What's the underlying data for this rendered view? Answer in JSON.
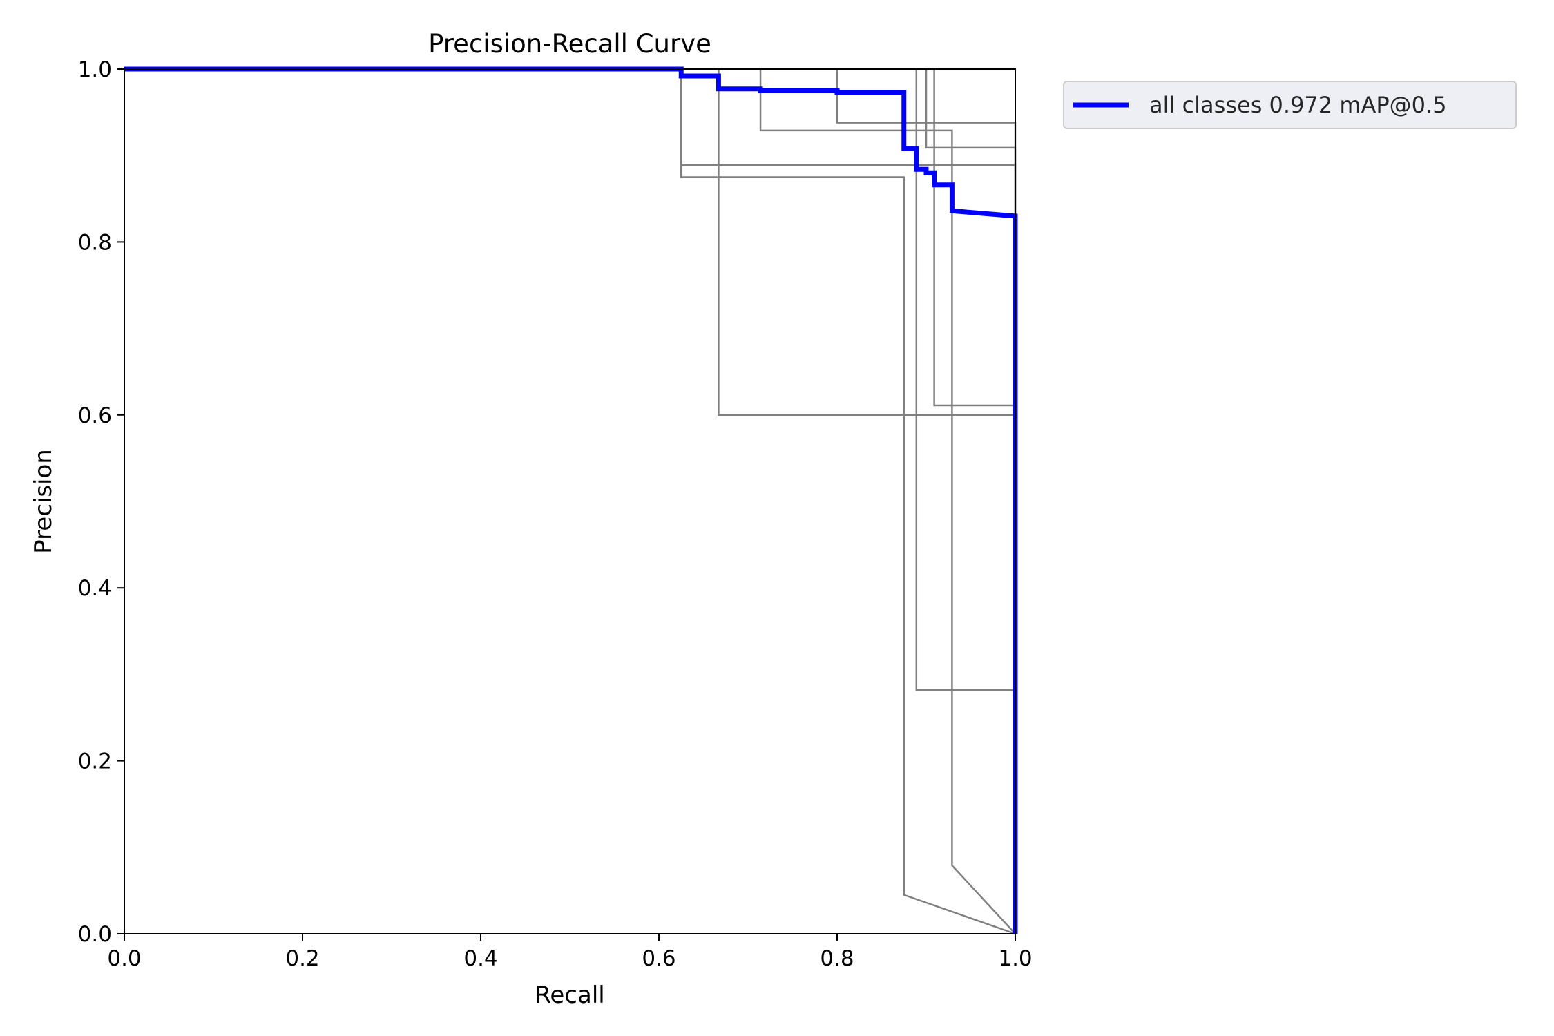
{
  "chart_data": {
    "type": "line",
    "title": "Precision-Recall Curve",
    "xlabel": "Recall",
    "ylabel": "Precision",
    "xlim": [
      0.0,
      1.0
    ],
    "ylim": [
      0.0,
      1.0
    ],
    "xticks": [
      "0.0",
      "0.2",
      "0.4",
      "0.6",
      "0.8",
      "1.0"
    ],
    "yticks": [
      "0.0",
      "0.2",
      "0.4",
      "0.6",
      "0.8",
      "1.0"
    ],
    "grid": false,
    "legend_position": "outside-top-right",
    "series": [
      {
        "name": "all classes 0.972 mAP@0.5",
        "color": "#0000ff",
        "emphasis": true,
        "points": [
          [
            0.0,
            1.0
          ],
          [
            0.625,
            1.0
          ],
          [
            0.625,
            0.992
          ],
          [
            0.667,
            0.992
          ],
          [
            0.667,
            0.977
          ],
          [
            0.714,
            0.977
          ],
          [
            0.714,
            0.975
          ],
          [
            0.8,
            0.975
          ],
          [
            0.8,
            0.973
          ],
          [
            0.875,
            0.973
          ],
          [
            0.875,
            0.908
          ],
          [
            0.889,
            0.908
          ],
          [
            0.889,
            0.884
          ],
          [
            0.9,
            0.884
          ],
          [
            0.9,
            0.88
          ],
          [
            0.909,
            0.88
          ],
          [
            0.909,
            0.866
          ],
          [
            0.929,
            0.866
          ],
          [
            0.929,
            0.836
          ],
          [
            1.0,
            0.83
          ],
          [
            1.0,
            0.0
          ]
        ]
      },
      {
        "color": "#808080",
        "points": [
          [
            0.0,
            1.0
          ],
          [
            0.625,
            1.0
          ],
          [
            0.625,
            0.889
          ],
          [
            1.0,
            0.889
          ],
          [
            1.0,
            0.0
          ]
        ]
      },
      {
        "color": "#808080",
        "points": [
          [
            0.0,
            1.0
          ],
          [
            0.625,
            1.0
          ],
          [
            0.625,
            0.875
          ],
          [
            0.875,
            0.875
          ],
          [
            0.875,
            0.045
          ],
          [
            1.0,
            0.0
          ]
        ]
      },
      {
        "color": "#808080",
        "points": [
          [
            0.0,
            1.0
          ],
          [
            0.667,
            1.0
          ],
          [
            0.667,
            0.6
          ],
          [
            1.0,
            0.6
          ],
          [
            1.0,
            0.0
          ]
        ]
      },
      {
        "color": "#808080",
        "points": [
          [
            0.0,
            1.0
          ],
          [
            0.714,
            1.0
          ],
          [
            0.714,
            0.929
          ],
          [
            0.929,
            0.929
          ],
          [
            0.929,
            0.079
          ],
          [
            1.0,
            0.0
          ]
        ]
      },
      {
        "color": "#808080",
        "points": [
          [
            0.0,
            1.0
          ],
          [
            0.8,
            1.0
          ],
          [
            0.8,
            0.938
          ],
          [
            1.0,
            0.938
          ],
          [
            1.0,
            0.0
          ]
        ]
      },
      {
        "color": "#808080",
        "points": [
          [
            0.0,
            1.0
          ],
          [
            0.889,
            1.0
          ],
          [
            0.889,
            0.282
          ],
          [
            1.0,
            0.282
          ],
          [
            1.0,
            0.0
          ]
        ]
      },
      {
        "color": "#808080",
        "points": [
          [
            0.0,
            1.0
          ],
          [
            0.9,
            1.0
          ],
          [
            0.9,
            0.909
          ],
          [
            1.0,
            0.909
          ],
          [
            1.0,
            0.0
          ]
        ]
      },
      {
        "color": "#808080",
        "points": [
          [
            0.0,
            1.0
          ],
          [
            0.909,
            1.0
          ],
          [
            0.909,
            0.611
          ],
          [
            1.0,
            0.611
          ],
          [
            1.0,
            0.0
          ]
        ]
      }
    ]
  }
}
